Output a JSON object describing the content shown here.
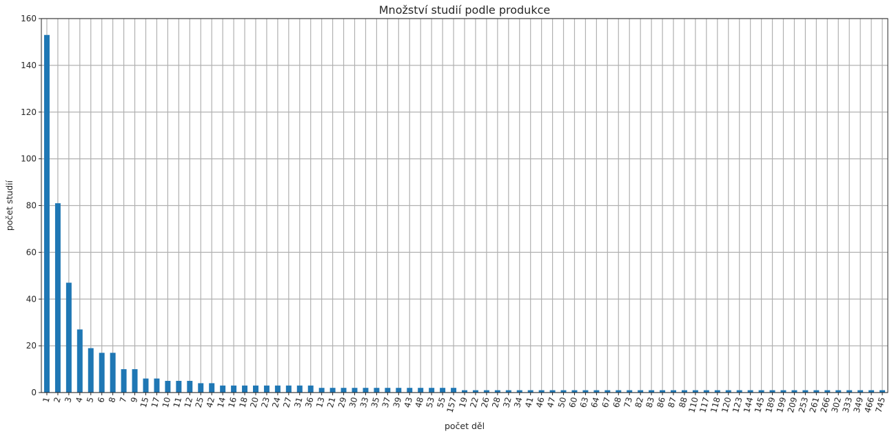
{
  "chart_data": {
    "type": "bar",
    "title": "Množství studií podle produkce",
    "xlabel": "počet děl",
    "ylabel": "počet studií",
    "ylim": [
      0,
      160
    ],
    "yticks": [
      0,
      20,
      40,
      60,
      80,
      100,
      120,
      140,
      160
    ],
    "grid": true,
    "color": "#1f77b4",
    "categories": [
      "1",
      "2",
      "3",
      "4",
      "5",
      "6",
      "8",
      "7",
      "9",
      "15",
      "17",
      "10",
      "11",
      "12",
      "25",
      "42",
      "14",
      "16",
      "18",
      "20",
      "23",
      "24",
      "27",
      "31",
      "36",
      "13",
      "21",
      "29",
      "30",
      "33",
      "35",
      "37",
      "39",
      "43",
      "48",
      "53",
      "55",
      "157",
      "19",
      "22",
      "26",
      "28",
      "32",
      "34",
      "41",
      "46",
      "47",
      "50",
      "60",
      "63",
      "64",
      "67",
      "68",
      "73",
      "82",
      "83",
      "86",
      "87",
      "88",
      "110",
      "117",
      "118",
      "120",
      "123",
      "144",
      "145",
      "189",
      "199",
      "209",
      "253",
      "261",
      "266",
      "302",
      "333",
      "349",
      "466",
      "745"
    ],
    "values": [
      153,
      81,
      47,
      27,
      19,
      17,
      17,
      10,
      10,
      6,
      6,
      5,
      5,
      5,
      4,
      4,
      3,
      3,
      3,
      3,
      3,
      3,
      3,
      3,
      3,
      2,
      2,
      2,
      2,
      2,
      2,
      2,
      2,
      2,
      2,
      2,
      2,
      2,
      1,
      1,
      1,
      1,
      1,
      1,
      1,
      1,
      1,
      1,
      1,
      1,
      1,
      1,
      1,
      1,
      1,
      1,
      1,
      1,
      1,
      1,
      1,
      1,
      1,
      1,
      1,
      1,
      1,
      1,
      1,
      1,
      1,
      1,
      1,
      1,
      1,
      1,
      1
    ]
  }
}
